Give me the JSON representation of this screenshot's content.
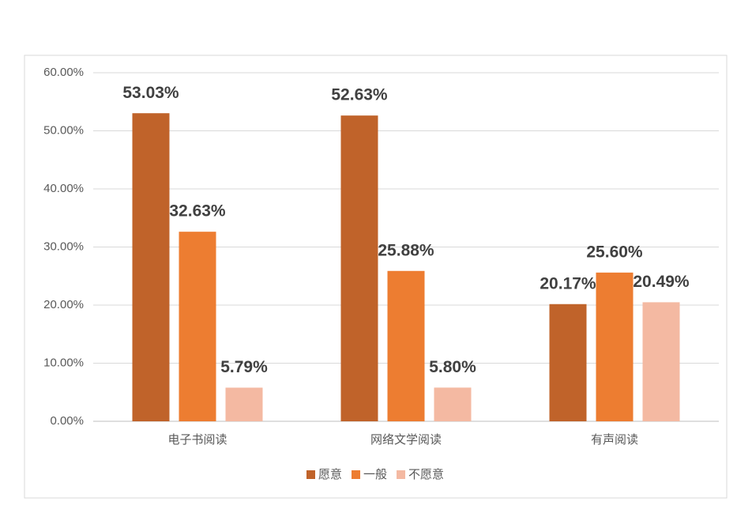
{
  "chart_data": {
    "type": "bar",
    "categories": [
      "电子书阅读",
      "网络文学阅读",
      "有声阅读"
    ],
    "series": [
      {
        "name": "愿意",
        "color": "#c0632a",
        "values": [
          53.03,
          52.63,
          20.17
        ],
        "value_labels": [
          "53.03%",
          "52.63%",
          "20.17%"
        ]
      },
      {
        "name": "一般",
        "color": "#ed7d31",
        "values": [
          32.63,
          25.88,
          25.6
        ],
        "value_labels": [
          "32.63%",
          "25.88%",
          "25.60%"
        ]
      },
      {
        "name": "不愿意",
        "color": "#f4b9a2",
        "values": [
          5.79,
          5.8,
          20.49
        ],
        "value_labels": [
          "5.79%",
          "5.80%",
          "20.49%"
        ]
      }
    ],
    "ylim": [
      0,
      60
    ],
    "yticks": [
      {
        "value": 0,
        "label": "0.00%"
      },
      {
        "value": 10,
        "label": "10.00%"
      },
      {
        "value": 20,
        "label": "20.00%"
      },
      {
        "value": 30,
        "label": "30.00%"
      },
      {
        "value": 40,
        "label": "40.00%"
      },
      {
        "value": 50,
        "label": "50.00%"
      },
      {
        "value": 60,
        "label": "60.00%"
      }
    ],
    "grid": true
  }
}
